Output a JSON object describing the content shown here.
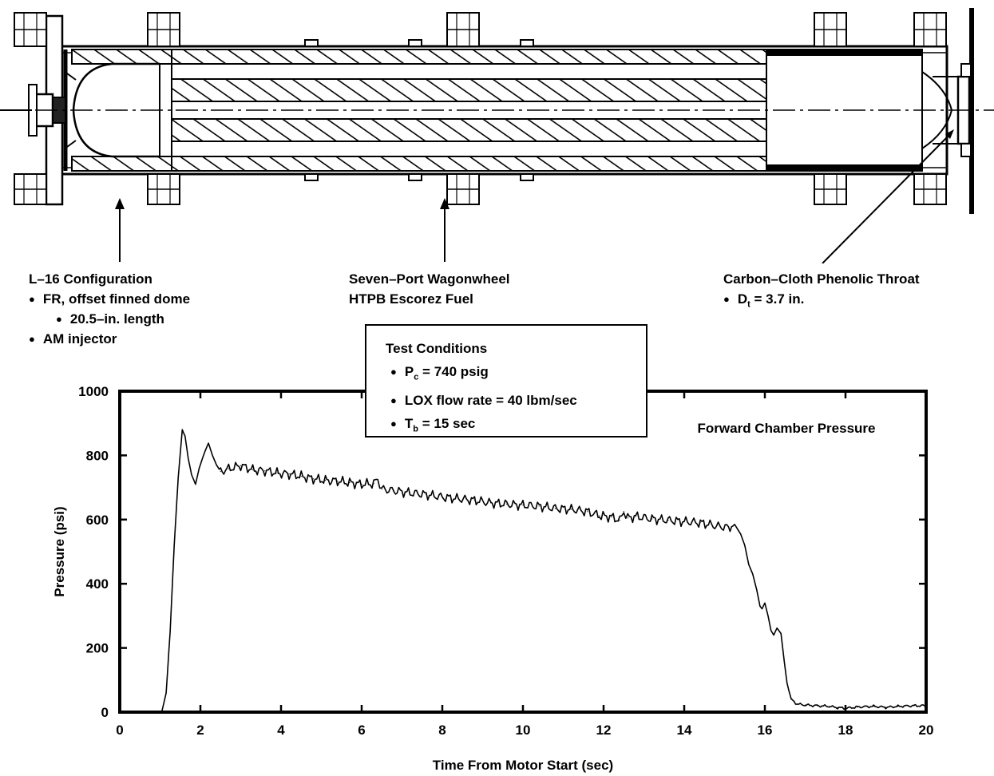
{
  "labels": {
    "config_title": "L–16 Configuration",
    "config_items": [
      "FR, offset finned dome",
      "20.5–in. length",
      "AM injector"
    ],
    "fuel_line1": "Seven–Port Wagonwheel",
    "fuel_line2": "HTPB Escorez Fuel",
    "throat_title": "Carbon–Cloth Phenolic Throat",
    "throat_item_prefix": "D",
    "throat_item_sub": "t",
    "throat_item_rest": " = 3.7 in."
  },
  "test_conditions": {
    "title": "Test Conditions",
    "pc_prefix": "P",
    "pc_sub": "c",
    "pc_rest": " = 740 psig",
    "lox": "LOX flow rate = 40 lbm/sec",
    "tb_prefix": "T",
    "tb_sub": "b",
    "tb_rest": " = 15 sec"
  },
  "chart_data": {
    "type": "line",
    "title": "",
    "annotation": "Forward Chamber Pressure",
    "xlabel": "Time From Motor Start (sec)",
    "ylabel": "Pressure (psi)",
    "xlim": [
      0,
      20
    ],
    "ylim": [
      0,
      1000
    ],
    "xticks": [
      0,
      2,
      4,
      6,
      8,
      10,
      12,
      14,
      16,
      18,
      20
    ],
    "yticks": [
      0,
      200,
      400,
      600,
      800,
      1000
    ],
    "grid": false,
    "series": [
      {
        "name": "",
        "points": [
          [
            1.05,
            5
          ],
          [
            1.15,
            60
          ],
          [
            1.25,
            250
          ],
          [
            1.35,
            520
          ],
          [
            1.45,
            730
          ],
          [
            1.55,
            880
          ],
          [
            1.62,
            860
          ],
          [
            1.7,
            790
          ],
          [
            1.78,
            740
          ],
          [
            1.88,
            710
          ],
          [
            1.97,
            760
          ],
          [
            2.05,
            790
          ],
          [
            2.12,
            815
          ],
          [
            2.2,
            838
          ],
          [
            2.3,
            800
          ],
          [
            2.4,
            770
          ],
          [
            2.5,
            750
          ],
          [
            2.7,
            758
          ],
          [
            3.0,
            768
          ],
          [
            3.3,
            755
          ],
          [
            3.6,
            752
          ],
          [
            3.9,
            745
          ],
          [
            4.2,
            742
          ],
          [
            4.5,
            735
          ],
          [
            4.8,
            727
          ],
          [
            5.1,
            722
          ],
          [
            5.4,
            720
          ],
          [
            5.7,
            715
          ],
          [
            6.0,
            710
          ],
          [
            6.3,
            712
          ],
          [
            6.4,
            725
          ],
          [
            6.5,
            695
          ],
          [
            6.8,
            690
          ],
          [
            7.2,
            683
          ],
          [
            7.6,
            678
          ],
          [
            8.0,
            670
          ],
          [
            8.4,
            665
          ],
          [
            8.8,
            660
          ],
          [
            9.2,
            652
          ],
          [
            9.6,
            648
          ],
          [
            10.0,
            645
          ],
          [
            10.4,
            642
          ],
          [
            10.8,
            635
          ],
          [
            11.2,
            632
          ],
          [
            11.6,
            625
          ],
          [
            11.9,
            612
          ],
          [
            12.2,
            608
          ],
          [
            12.4,
            598
          ],
          [
            12.5,
            625
          ],
          [
            12.6,
            605
          ],
          [
            12.8,
            610
          ],
          [
            13.2,
            602
          ],
          [
            13.6,
            598
          ],
          [
            14.0,
            594
          ],
          [
            14.4,
            590
          ],
          [
            14.8,
            580
          ],
          [
            15.1,
            575
          ],
          [
            15.25,
            585
          ],
          [
            15.4,
            555
          ],
          [
            15.5,
            520
          ],
          [
            15.6,
            460
          ],
          [
            15.7,
            430
          ],
          [
            15.8,
            380
          ],
          [
            15.88,
            330
          ],
          [
            15.93,
            322
          ],
          [
            16.0,
            340
          ],
          [
            16.08,
            300
          ],
          [
            16.15,
            255
          ],
          [
            16.22,
            240
          ],
          [
            16.3,
            262
          ],
          [
            16.4,
            245
          ],
          [
            16.48,
            160
          ],
          [
            16.55,
            90
          ],
          [
            16.65,
            40
          ],
          [
            16.8,
            25
          ],
          [
            17.0,
            22
          ],
          [
            17.3,
            20
          ],
          [
            17.6,
            18
          ],
          [
            17.8,
            14
          ],
          [
            18.0,
            12
          ],
          [
            18.3,
            16
          ],
          [
            18.7,
            18
          ],
          [
            19.0,
            15
          ],
          [
            19.3,
            18
          ],
          [
            19.7,
            20
          ],
          [
            20.0,
            20
          ]
        ]
      }
    ]
  }
}
